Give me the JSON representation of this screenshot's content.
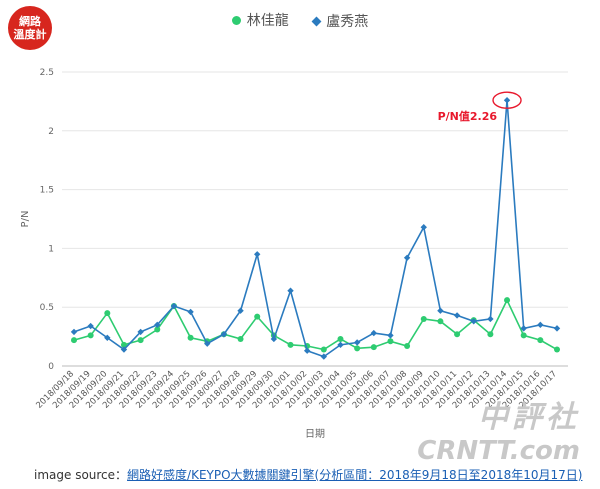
{
  "logo": {
    "line1": "網路",
    "line2": "溫度計"
  },
  "watermark": {
    "line1": "中評社",
    "line2": "CRNTT.com"
  },
  "source": {
    "prefix": "image source：",
    "link_text": "網路好感度/KEYPO大數據關鍵引擎(分析區間：2018年9月18日至2018年10月17日)"
  },
  "chart_data": {
    "type": "line",
    "title": "",
    "xlabel": "日期",
    "ylabel": "P/N",
    "ylim": [
      0,
      2.5
    ],
    "yticks": [
      "0",
      "0.5",
      "1",
      "1.5",
      "2",
      "2.5"
    ],
    "ytick_values": [
      0,
      0.5,
      1,
      1.5,
      2,
      2.5
    ],
    "grid": "horizontal",
    "legend_position": "top-center",
    "categories": [
      "2018/09/18",
      "2018/09/19",
      "2018/09/20",
      "2018/09/21",
      "2018/09/22",
      "2018/09/23",
      "2018/09/24",
      "2018/09/25",
      "2018/09/26",
      "2018/09/27",
      "2018/09/28",
      "2018/09/29",
      "2018/09/30",
      "2018/10/01",
      "2018/10/02",
      "2018/10/03",
      "2018/10/04",
      "2018/10/05",
      "2018/10/06",
      "2018/10/07",
      "2018/10/08",
      "2018/10/09",
      "2018/10/10",
      "2018/10/11",
      "2018/10/12",
      "2018/10/13",
      "2018/10/14",
      "2018/10/15",
      "2018/10/16",
      "2018/10/17"
    ],
    "series": [
      {
        "name": "林佳龍",
        "color": "#2ecc71",
        "marker": "circle",
        "values": [
          0.22,
          0.26,
          0.45,
          0.18,
          0.22,
          0.31,
          0.51,
          0.24,
          0.21,
          0.27,
          0.23,
          0.42,
          0.26,
          0.18,
          0.17,
          0.14,
          0.23,
          0.15,
          0.16,
          0.21,
          0.17,
          0.4,
          0.38,
          0.27,
          0.39,
          0.27,
          0.56,
          0.26,
          0.22,
          0.14
        ]
      },
      {
        "name": "盧秀燕",
        "color": "#2b7bbf",
        "marker": "diamond",
        "values": [
          0.29,
          0.34,
          0.24,
          0.14,
          0.29,
          0.35,
          0.51,
          0.46,
          0.19,
          0.27,
          0.47,
          0.95,
          0.23,
          0.64,
          0.13,
          0.08,
          0.18,
          0.2,
          0.28,
          0.26,
          0.92,
          1.18,
          0.47,
          0.43,
          0.38,
          0.4,
          2.26,
          0.32,
          0.35,
          0.32
        ]
      }
    ],
    "annotation": {
      "text": "P/N值2.26",
      "series_index": 1,
      "category_index": 26,
      "color": "#e8182c"
    }
  }
}
